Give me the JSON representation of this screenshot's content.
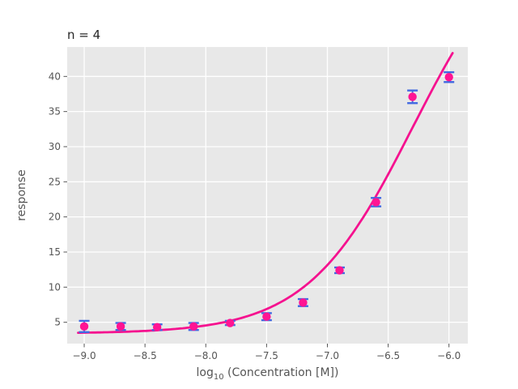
{
  "chart_data": {
    "type": "scatter",
    "title": "n = 4",
    "ylabel": "response",
    "xlabel": "log10 (Concentration [M])",
    "xlabel_parts": {
      "prefix": "log",
      "sub": "10",
      "rest": " (Concentration [M])"
    },
    "x": [
      -9.0,
      -8.7,
      -8.4,
      -8.1,
      -7.8,
      -7.5,
      -7.2,
      -6.9,
      -6.6,
      -6.3,
      -6.0
    ],
    "y": [
      4.4,
      4.4,
      4.3,
      4.4,
      4.9,
      5.8,
      7.8,
      12.4,
      22.1,
      37.1,
      39.9
    ],
    "yerr": [
      0.8,
      0.5,
      0.4,
      0.5,
      0.3,
      0.5,
      0.5,
      0.4,
      0.6,
      0.9,
      0.7
    ],
    "fit_curve": {
      "model": "4-parameter logistic",
      "bottom": 3.4,
      "top": 62.0,
      "log_ec50": -6.3,
      "hill": 1.0,
      "x_start": -9.05,
      "x_end": -5.97
    },
    "xticks": [
      -9.0,
      -8.5,
      -8.0,
      -7.5,
      -7.0,
      -6.5,
      -6.0
    ],
    "xtick_labels": [
      "−9.0",
      "−8.5",
      "−8.0",
      "−7.5",
      "−7.0",
      "−6.5",
      "−6.0"
    ],
    "yticks": [
      5,
      10,
      15,
      20,
      25,
      30,
      35,
      40
    ],
    "ytick_labels": [
      "5",
      "10",
      "15",
      "20",
      "25",
      "30",
      "35",
      "40"
    ],
    "xlim": [
      -9.14,
      -5.845
    ],
    "ylim": [
      1.96,
      44.19
    ],
    "grid": true,
    "legend": null,
    "style": {
      "plot_bg": "#e8e8e8",
      "grid_color": "#ffffff",
      "marker_color": "#ff1493",
      "curve_color": "#f5128f",
      "errorbar_color": "#4169e1",
      "tick_color": "#555555",
      "tick_label_color": "#555555",
      "axis_label_color": "#555555",
      "title_color": "#262626"
    }
  }
}
